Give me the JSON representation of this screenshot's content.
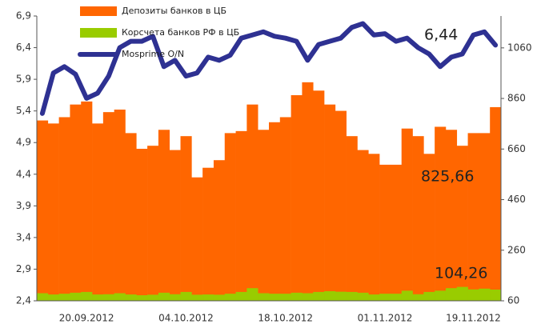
{
  "chart_data": {
    "type": "bar_line",
    "categories": [
      null,
      null,
      null,
      null,
      "20.09.2012",
      null,
      null,
      null,
      null,
      null,
      null,
      null,
      null,
      "04.10.2012",
      null,
      null,
      null,
      null,
      null,
      null,
      null,
      null,
      "18.10.2012",
      null,
      null,
      null,
      null,
      null,
      null,
      null,
      null,
      "01.11.2012",
      null,
      null,
      null,
      null,
      null,
      null,
      null,
      "19.11.2012",
      null,
      null
    ],
    "series": [
      {
        "name": "Депозиты банков в ЦБ",
        "color": "#ff6600",
        "axis": "y2",
        "kind": "bar",
        "values": [
          773,
          761,
          786,
          836,
          848,
          761,
          806,
          816,
          723,
          661,
          673,
          736,
          656,
          711,
          548,
          586,
          616,
          723,
          731,
          836,
          736,
          766,
          786,
          873,
          924,
          891,
          836,
          811,
          711,
          656,
          641,
          598,
          598,
          741,
          711,
          641,
          748,
          736,
          673,
          723,
          723,
          825.66
        ]
      },
      {
        "name": "Корсчета банков РФ в ЦБ",
        "color": "#99cc00",
        "axis": "y2",
        "kind": "bar",
        "values": [
          90,
          85,
          88,
          92,
          95,
          85,
          86,
          90,
          85,
          82,
          84,
          92,
          86,
          95,
          84,
          85,
          84,
          88,
          95,
          110,
          90,
          88,
          88,
          92,
          90,
          95,
          98,
          96,
          95,
          92,
          85,
          88,
          88,
          100,
          86,
          95,
          100,
          110,
          115,
          105,
          108,
          104.26
        ]
      },
      {
        "name": "Mosprime O/N",
        "color": "#2e3192",
        "axis": "y",
        "kind": "line",
        "values": [
          5.36,
          6.0,
          6.1,
          5.98,
          5.6,
          5.68,
          5.95,
          6.4,
          6.5,
          6.5,
          6.58,
          6.1,
          6.2,
          5.95,
          6.0,
          6.25,
          6.2,
          6.28,
          6.55,
          6.6,
          6.65,
          6.58,
          6.55,
          6.5,
          6.2,
          6.45,
          6.5,
          6.55,
          6.72,
          6.78,
          6.6,
          6.62,
          6.5,
          6.55,
          6.4,
          6.3,
          6.1,
          6.25,
          6.3,
          6.6,
          6.65,
          6.44
        ]
      }
    ],
    "ylim": [
      2.4,
      6.9
    ],
    "yticks": [
      {
        "value": 2.4,
        "label": "2,4"
      },
      {
        "value": 2.9,
        "label": "2,9"
      },
      {
        "value": 3.4,
        "label": "3,4"
      },
      {
        "value": 3.9,
        "label": "3,9"
      },
      {
        "value": 4.4,
        "label": "4,4"
      },
      {
        "value": 4.9,
        "label": "4,9"
      },
      {
        "value": 5.4,
        "label": "5,4"
      },
      {
        "value": 5.9,
        "label": "5,9"
      },
      {
        "value": 6.4,
        "label": "6,4"
      },
      {
        "value": 6.9,
        "label": "6,9"
      }
    ],
    "y2lim": [
      60,
      1186
    ],
    "y2ticks": [
      60,
      260,
      460,
      660,
      860,
      1060
    ],
    "annotations": [
      "6,44",
      "825,66",
      "104,26"
    ]
  }
}
